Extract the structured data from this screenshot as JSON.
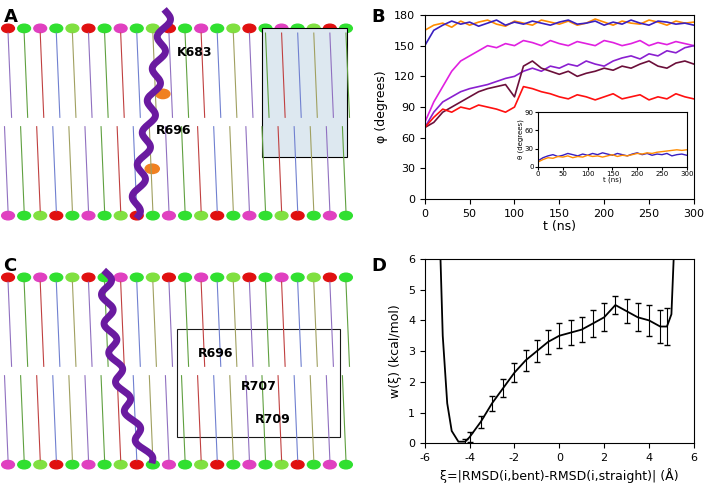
{
  "panel_labels": [
    "A",
    "B",
    "C",
    "D"
  ],
  "structures": [
    {
      "panel": "A",
      "residue_labels": [
        "K683",
        "R696"
      ]
    },
    {
      "panel": "C",
      "residue_labels": [
        "R696",
        "R707",
        "R709"
      ]
    }
  ],
  "chart_data": [
    {
      "type": "line",
      "panel": "B",
      "x_label": "t (ns)",
      "y_label": "φ (degrees)",
      "x": [
        0,
        10,
        20,
        30,
        40,
        50,
        60,
        70,
        80,
        90,
        100,
        110,
        120,
        130,
        140,
        150,
        160,
        170,
        180,
        190,
        200,
        210,
        220,
        230,
        240,
        250,
        260,
        270,
        280,
        290,
        300
      ],
      "xlim": [
        0,
        300
      ],
      "xticks": [
        0,
        50,
        100,
        150,
        200,
        250,
        300
      ],
      "ylim": [
        0,
        180
      ],
      "yticks": [
        0,
        30,
        60,
        90,
        120,
        150,
        180
      ],
      "series": [
        {
          "color": "#ff8c00",
          "values": [
            165,
            170,
            172,
            168,
            174,
            170,
            173,
            175,
            171,
            169,
            174,
            172,
            170,
            175,
            173,
            171,
            174,
            170,
            172,
            176,
            173,
            170,
            174,
            172,
            171,
            175,
            173,
            170,
            174,
            172,
            173
          ]
        },
        {
          "color": "#3a1fc0",
          "values": [
            150,
            165,
            170,
            174,
            171,
            173,
            169,
            172,
            175,
            170,
            173,
            171,
            174,
            172,
            170,
            173,
            175,
            171,
            172,
            174,
            170,
            173,
            171,
            175,
            172,
            170,
            174,
            173,
            171,
            172,
            170
          ]
        },
        {
          "color": "#e020e0",
          "values": [
            75,
            95,
            110,
            125,
            135,
            140,
            145,
            150,
            148,
            152,
            150,
            155,
            153,
            150,
            155,
            152,
            150,
            154,
            152,
            150,
            155,
            153,
            150,
            152,
            155,
            150,
            153,
            151,
            154,
            152,
            150
          ]
        },
        {
          "color": "#8a1fd0",
          "values": [
            70,
            85,
            95,
            100,
            105,
            108,
            110,
            112,
            115,
            118,
            120,
            125,
            128,
            125,
            130,
            128,
            132,
            130,
            135,
            132,
            130,
            135,
            138,
            140,
            137,
            142,
            140,
            145,
            143,
            148,
            150
          ]
        },
        {
          "color": "#6b0f3a",
          "values": [
            70,
            75,
            85,
            90,
            95,
            100,
            105,
            108,
            110,
            112,
            100,
            130,
            135,
            128,
            125,
            122,
            125,
            120,
            123,
            125,
            128,
            126,
            130,
            128,
            132,
            135,
            130,
            128,
            133,
            135,
            132
          ]
        },
        {
          "color": "#ff1010",
          "values": [
            70,
            80,
            88,
            85,
            90,
            88,
            92,
            90,
            88,
            85,
            90,
            110,
            108,
            105,
            103,
            100,
            98,
            102,
            100,
            97,
            100,
            103,
            98,
            100,
            102,
            97,
            100,
            98,
            103,
            100,
            98
          ]
        }
      ],
      "inset": {
        "type": "line",
        "x_label": "t (ns)",
        "y_label": "θ (degrees)",
        "x": [
          0,
          10,
          20,
          30,
          40,
          50,
          60,
          70,
          80,
          90,
          100,
          110,
          120,
          130,
          140,
          150,
          160,
          170,
          180,
          190,
          200,
          210,
          220,
          230,
          240,
          250,
          260,
          270,
          280,
          290,
          300
        ],
        "xlim": [
          0,
          300
        ],
        "xticks": [
          0,
          50,
          100,
          150,
          200,
          250,
          300
        ],
        "ylim": [
          0,
          90
        ],
        "yticks": [
          0,
          30,
          60,
          90
        ],
        "series": [
          {
            "color": "#3a1fc0",
            "values": [
              10,
              15,
              18,
              20,
              17,
              19,
              22,
              20,
              18,
              21,
              19,
              22,
              20,
              23,
              21,
              19,
              22,
              20,
              18,
              21,
              23,
              20,
              22,
              19,
              21,
              20,
              22,
              18,
              20,
              21,
              19
            ]
          },
          {
            "color": "#ff8c00",
            "values": [
              8,
              12,
              15,
              14,
              17,
              16,
              18,
              15,
              17,
              16,
              19,
              17,
              18,
              16,
              18,
              20,
              17,
              19,
              18,
              20,
              22,
              21,
              23,
              22,
              24,
              25,
              26,
              27,
              28,
              27,
              28
            ]
          }
        ]
      }
    },
    {
      "type": "line",
      "panel": "D",
      "x_label": "ξ=|RMSD(i,bent)-RMSD(i,straight)| (Å)",
      "y_label": "w(ξ) (kcal/mol)",
      "x": [
        -5.3,
        -5.2,
        -5.0,
        -4.8,
        -4.5,
        -4.2,
        -4.0,
        -3.5,
        -3.0,
        -2.5,
        -2.0,
        -1.5,
        -1.0,
        -0.5,
        0.0,
        0.5,
        1.0,
        1.5,
        2.0,
        2.5,
        3.0,
        3.5,
        4.0,
        4.5,
        4.8,
        5.0,
        5.1
      ],
      "xlim": [
        -6,
        6
      ],
      "xticks": [
        -6,
        -4,
        -2,
        0,
        2,
        4,
        6
      ],
      "ylim": [
        0,
        6
      ],
      "yticks": [
        0,
        1,
        2,
        3,
        4,
        5,
        6
      ],
      "color": "#000000",
      "values": [
        6.0,
        3.5,
        1.3,
        0.4,
        0.05,
        0.05,
        0.2,
        0.7,
        1.3,
        1.8,
        2.3,
        2.7,
        3.0,
        3.3,
        3.5,
        3.6,
        3.7,
        3.9,
        4.1,
        4.5,
        4.3,
        4.1,
        4.0,
        3.8,
        3.8,
        4.2,
        6.0
      ],
      "errors": [
        null,
        null,
        null,
        null,
        null,
        0.1,
        0.15,
        0.2,
        0.25,
        0.3,
        0.3,
        0.35,
        0.35,
        0.4,
        0.4,
        0.4,
        0.4,
        0.45,
        0.45,
        0.3,
        0.4,
        0.45,
        0.5,
        0.55,
        0.6,
        null,
        null
      ]
    }
  ]
}
